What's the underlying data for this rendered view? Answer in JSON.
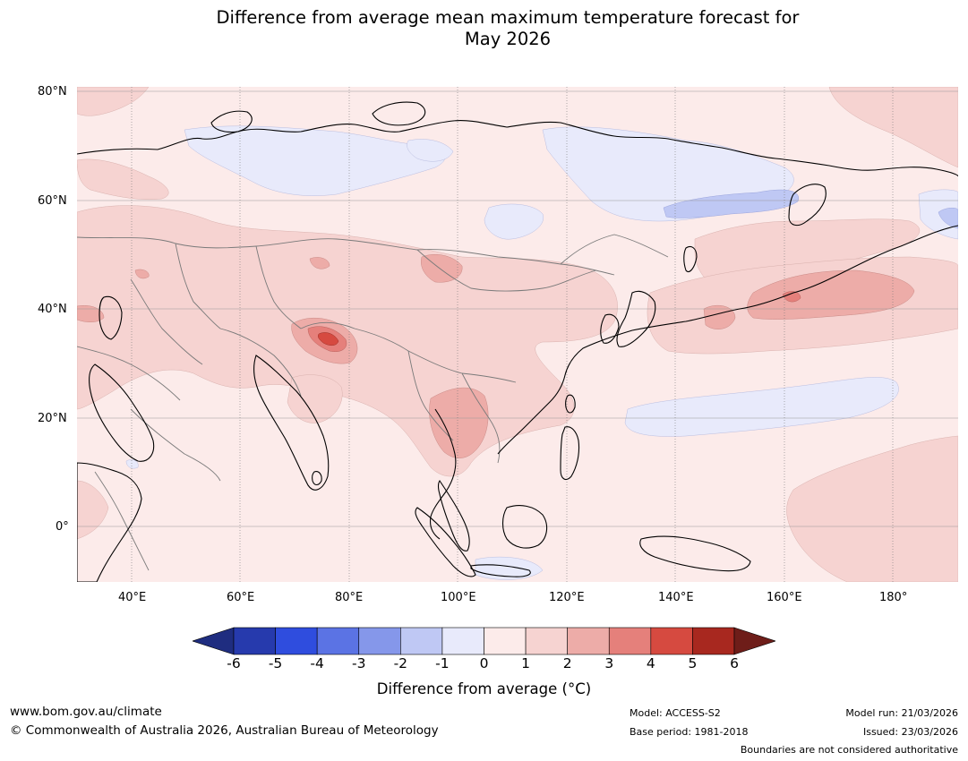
{
  "title": {
    "line1": "Difference from average mean maximum temperature forecast for",
    "line2": "May 2026"
  },
  "map": {
    "region": "Asia and Western Pacific",
    "latitude_labels": [
      "80°N",
      "60°N",
      "40°N",
      "20°N",
      "0°"
    ],
    "longitude_labels": [
      "40°E",
      "60°E",
      "80°E",
      "100°E",
      "120°E",
      "140°E",
      "160°E",
      "180°"
    ]
  },
  "colorbar": {
    "ticks": [
      "-6",
      "-5",
      "-4",
      "-3",
      "-2",
      "-1",
      "0",
      "1",
      "2",
      "3",
      "4",
      "5",
      "6"
    ],
    "colors": [
      "#1f2d80",
      "#263aad",
      "#2f4dde",
      "#5b73e4",
      "#8597ea",
      "#bfc8f4",
      "#e8eafb",
      "#fcebea",
      "#f6d3d1",
      "#edaca8",
      "#e5807b",
      "#d64a40",
      "#a8281f",
      "#6e1d19"
    ],
    "label": "Difference from average (°C)"
  },
  "footer": {
    "website": "www.bom.gov.au/climate",
    "copyright": "© Commonwealth of Australia 2026, Australian Bureau of Meteorology",
    "model": "Model: ACCESS-S2",
    "base_period": "Base period: 1981-2018",
    "model_run": "Model run: 21/03/2026",
    "issued": "Issued: 23/03/2026",
    "disclaimer": "Boundaries are not considered authoritative"
  }
}
